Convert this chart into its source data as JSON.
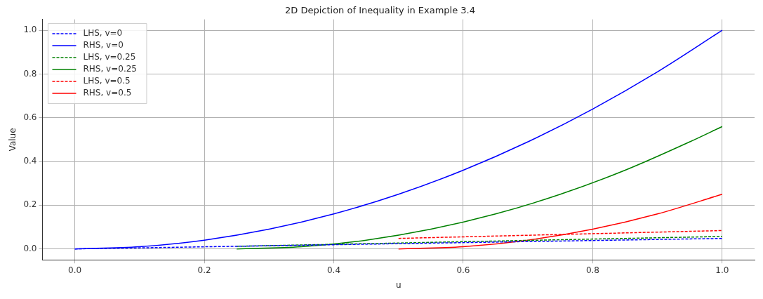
{
  "chart_data": {
    "type": "line",
    "title": "2D Depiction of Inequality in Example 3.4",
    "xlabel": "u",
    "ylabel": "Value",
    "xlim": [
      -0.05,
      1.05
    ],
    "ylim": [
      -0.05,
      1.05
    ],
    "xticks": [
      {
        "value": 0,
        "label": "0.0"
      },
      0.2,
      0.4,
      0.6,
      0.8,
      {
        "value": 1,
        "label": "1.0"
      }
    ],
    "yticks": [
      {
        "value": 0,
        "label": "0.0"
      },
      0.2,
      0.4,
      0.6,
      0.8,
      {
        "value": 1,
        "label": "1.0"
      }
    ],
    "grid": true,
    "legend": "top left",
    "marker": "none",
    "series": [
      {
        "name": "LHS, v=0",
        "color": "#0000ff",
        "line_style": "dashed",
        "x": [
          0,
          0.25,
          0.5,
          0.75,
          1
        ],
        "values": [
          0,
          0.012,
          0.024,
          0.036,
          0.048
        ]
      },
      {
        "name": "RHS, v=0",
        "color": "#0000ff",
        "line_style": "solid",
        "x": [
          0,
          0.1,
          0.2,
          0.3,
          0.4,
          0.5,
          0.6,
          0.7,
          0.8,
          0.9,
          1
        ],
        "values": [
          0,
          0.01,
          0.04,
          0.09,
          0.16,
          0.25,
          0.36,
          0.49,
          0.64,
          0.81,
          1
        ]
      },
      {
        "name": "LHS, v=0.25",
        "color": "#008000",
        "line_style": "dashed",
        "x": [
          0.25,
          0.5,
          0.75,
          1
        ],
        "values": [
          0.012,
          0.027,
          0.042,
          0.057
        ]
      },
      {
        "name": "RHS, v=0.25",
        "color": "#008000",
        "line_style": "solid",
        "x": [
          0.25,
          0.35,
          0.45,
          0.55,
          0.65,
          0.75,
          0.85,
          0.95,
          1
        ],
        "values": [
          0,
          0.01,
          0.04,
          0.09,
          0.16,
          0.25,
          0.36,
          0.49,
          0.56
        ]
      },
      {
        "name": "LHS, v=0.5",
        "color": "#ff0000",
        "line_style": "dashed",
        "x": [
          0.5,
          0.75,
          1
        ],
        "values": [
          0.048,
          0.066,
          0.084
        ]
      },
      {
        "name": "RHS, v=0.5",
        "color": "#ff0000",
        "line_style": "solid",
        "x": [
          0.5,
          0.6,
          0.7,
          0.8,
          0.9,
          1
        ],
        "values": [
          0,
          0.01,
          0.04,
          0.09,
          0.16,
          0.25
        ]
      }
    ]
  }
}
